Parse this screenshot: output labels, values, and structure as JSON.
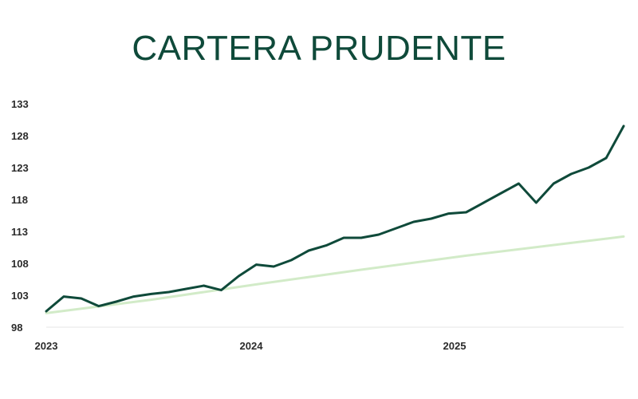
{
  "chart_data": {
    "type": "line",
    "title": "CARTERA PRUDENTE",
    "xlabel": "",
    "ylabel": "",
    "x_ticks": [
      "2023",
      "2024",
      "2025"
    ],
    "x_range": [
      "2023-01",
      "2025-10"
    ],
    "y_ticks": [
      98,
      103,
      108,
      113,
      118,
      123,
      128,
      133
    ],
    "ylim": [
      98,
      133
    ],
    "grid": false,
    "legend": "none",
    "colors": {
      "portfolio": "#0f4a3a",
      "benchmark": "#d2ebc8",
      "title": "#0f4a3a"
    },
    "series": [
      {
        "x": [
          "2023-01",
          "2023-02",
          "2023-03",
          "2023-04",
          "2023-05",
          "2023-06",
          "2023-07",
          "2023-08",
          "2023-09",
          "2023-10",
          "2023-11",
          "2023-12",
          "2024-01",
          "2024-02",
          "2024-03",
          "2024-04",
          "2024-05",
          "2024-06",
          "2024-07",
          "2024-08",
          "2024-09",
          "2024-10",
          "2024-11",
          "2024-12",
          "2025-01",
          "2025-02",
          "2025-03",
          "2025-04",
          "2025-05",
          "2025-06",
          "2025-07",
          "2025-08",
          "2025-09",
          "2025-10"
        ],
        "values": [
          100.5,
          102.8,
          102.5,
          101.3,
          102.0,
          102.8,
          103.2,
          103.5,
          104.0,
          104.5,
          103.8,
          106.0,
          107.8,
          107.5,
          108.5,
          110.0,
          110.8,
          112.0,
          112.0,
          112.5,
          113.5,
          114.5,
          115.0,
          115.8,
          116.0,
          117.5,
          119.0,
          120.5,
          117.5,
          120.5,
          122.0,
          123.0,
          124.5,
          129.5
        ]
      },
      {
        "x": [
          "2023-01",
          "2023-07",
          "2024-01",
          "2024-07",
          "2025-01",
          "2025-07",
          "2025-10"
        ],
        "values": [
          100.2,
          102.3,
          104.7,
          107.0,
          109.2,
          111.2,
          112.2
        ]
      }
    ]
  }
}
